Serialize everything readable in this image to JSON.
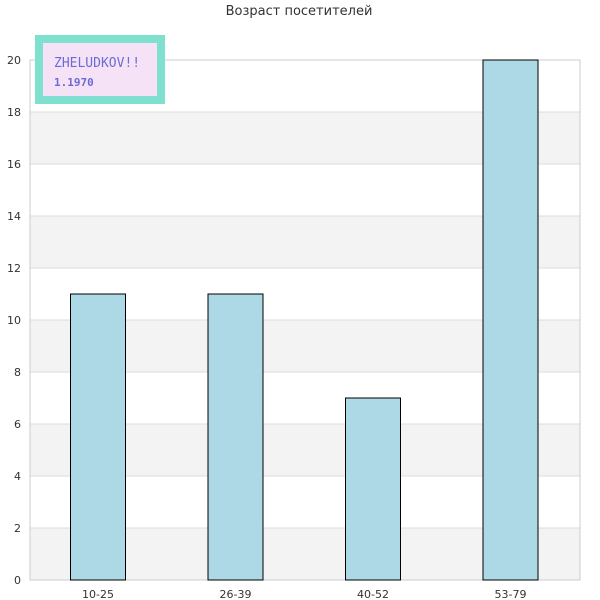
{
  "chart_data": {
    "type": "bar",
    "title": "Возраст посетителей",
    "xlabel": "",
    "ylabel": "",
    "categories": [
      "10-25",
      "26-39",
      "40-52",
      "53-79"
    ],
    "values": [
      11,
      11,
      7,
      20
    ],
    "ylim": [
      0,
      20
    ],
    "yticks": [
      0,
      2,
      4,
      6,
      8,
      10,
      12,
      14,
      16,
      18,
      20
    ],
    "grid": true,
    "legend": "none",
    "bar_color": "#add8e6",
    "bar_border_color": "#000000",
    "band_colors": [
      "#ffffff",
      "#f3f3f3"
    ],
    "grid_color": "#dcdcdc"
  },
  "badge": {
    "title": "ZHELUDKOV!!",
    "subtitle": "1.1970",
    "border_color": "#7fe0cf",
    "fill_color": "#f6e2f7",
    "text_color": "#6b6bd6"
  }
}
